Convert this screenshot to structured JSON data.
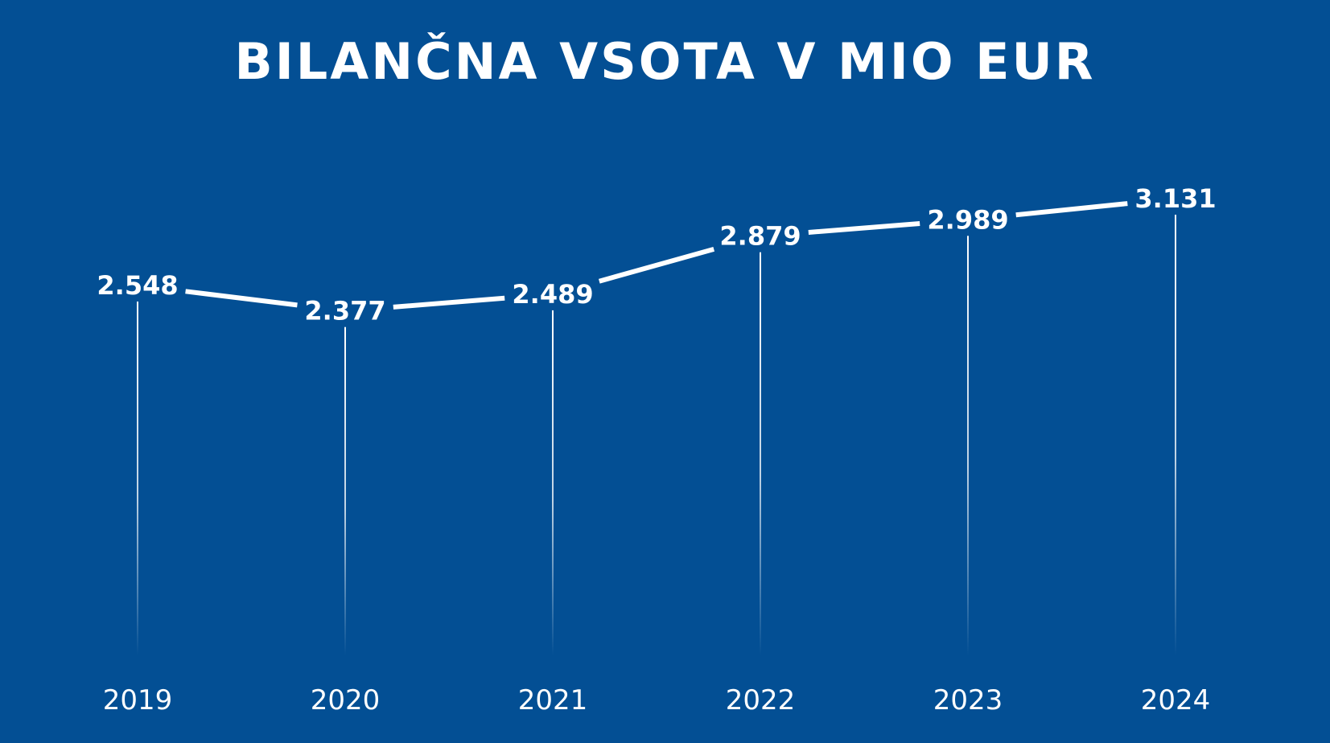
{
  "chart_data": {
    "type": "line",
    "title": "BILANČNA VSOTA V MIO EUR",
    "categories": [
      "2019",
      "2020",
      "2021",
      "2022",
      "2023",
      "2024"
    ],
    "values": [
      2548,
      2377,
      2489,
      2879,
      2989,
      3131
    ],
    "value_labels": [
      "2.548",
      "2.377",
      "2.489",
      "2.879",
      "2.989",
      "3.131"
    ],
    "xlabel": "",
    "ylabel": "",
    "grid": false,
    "legend": "none",
    "drop_lines": true
  },
  "colors": {
    "background": "#034f94",
    "line": "#ffffff",
    "text": "#ffffff"
  }
}
